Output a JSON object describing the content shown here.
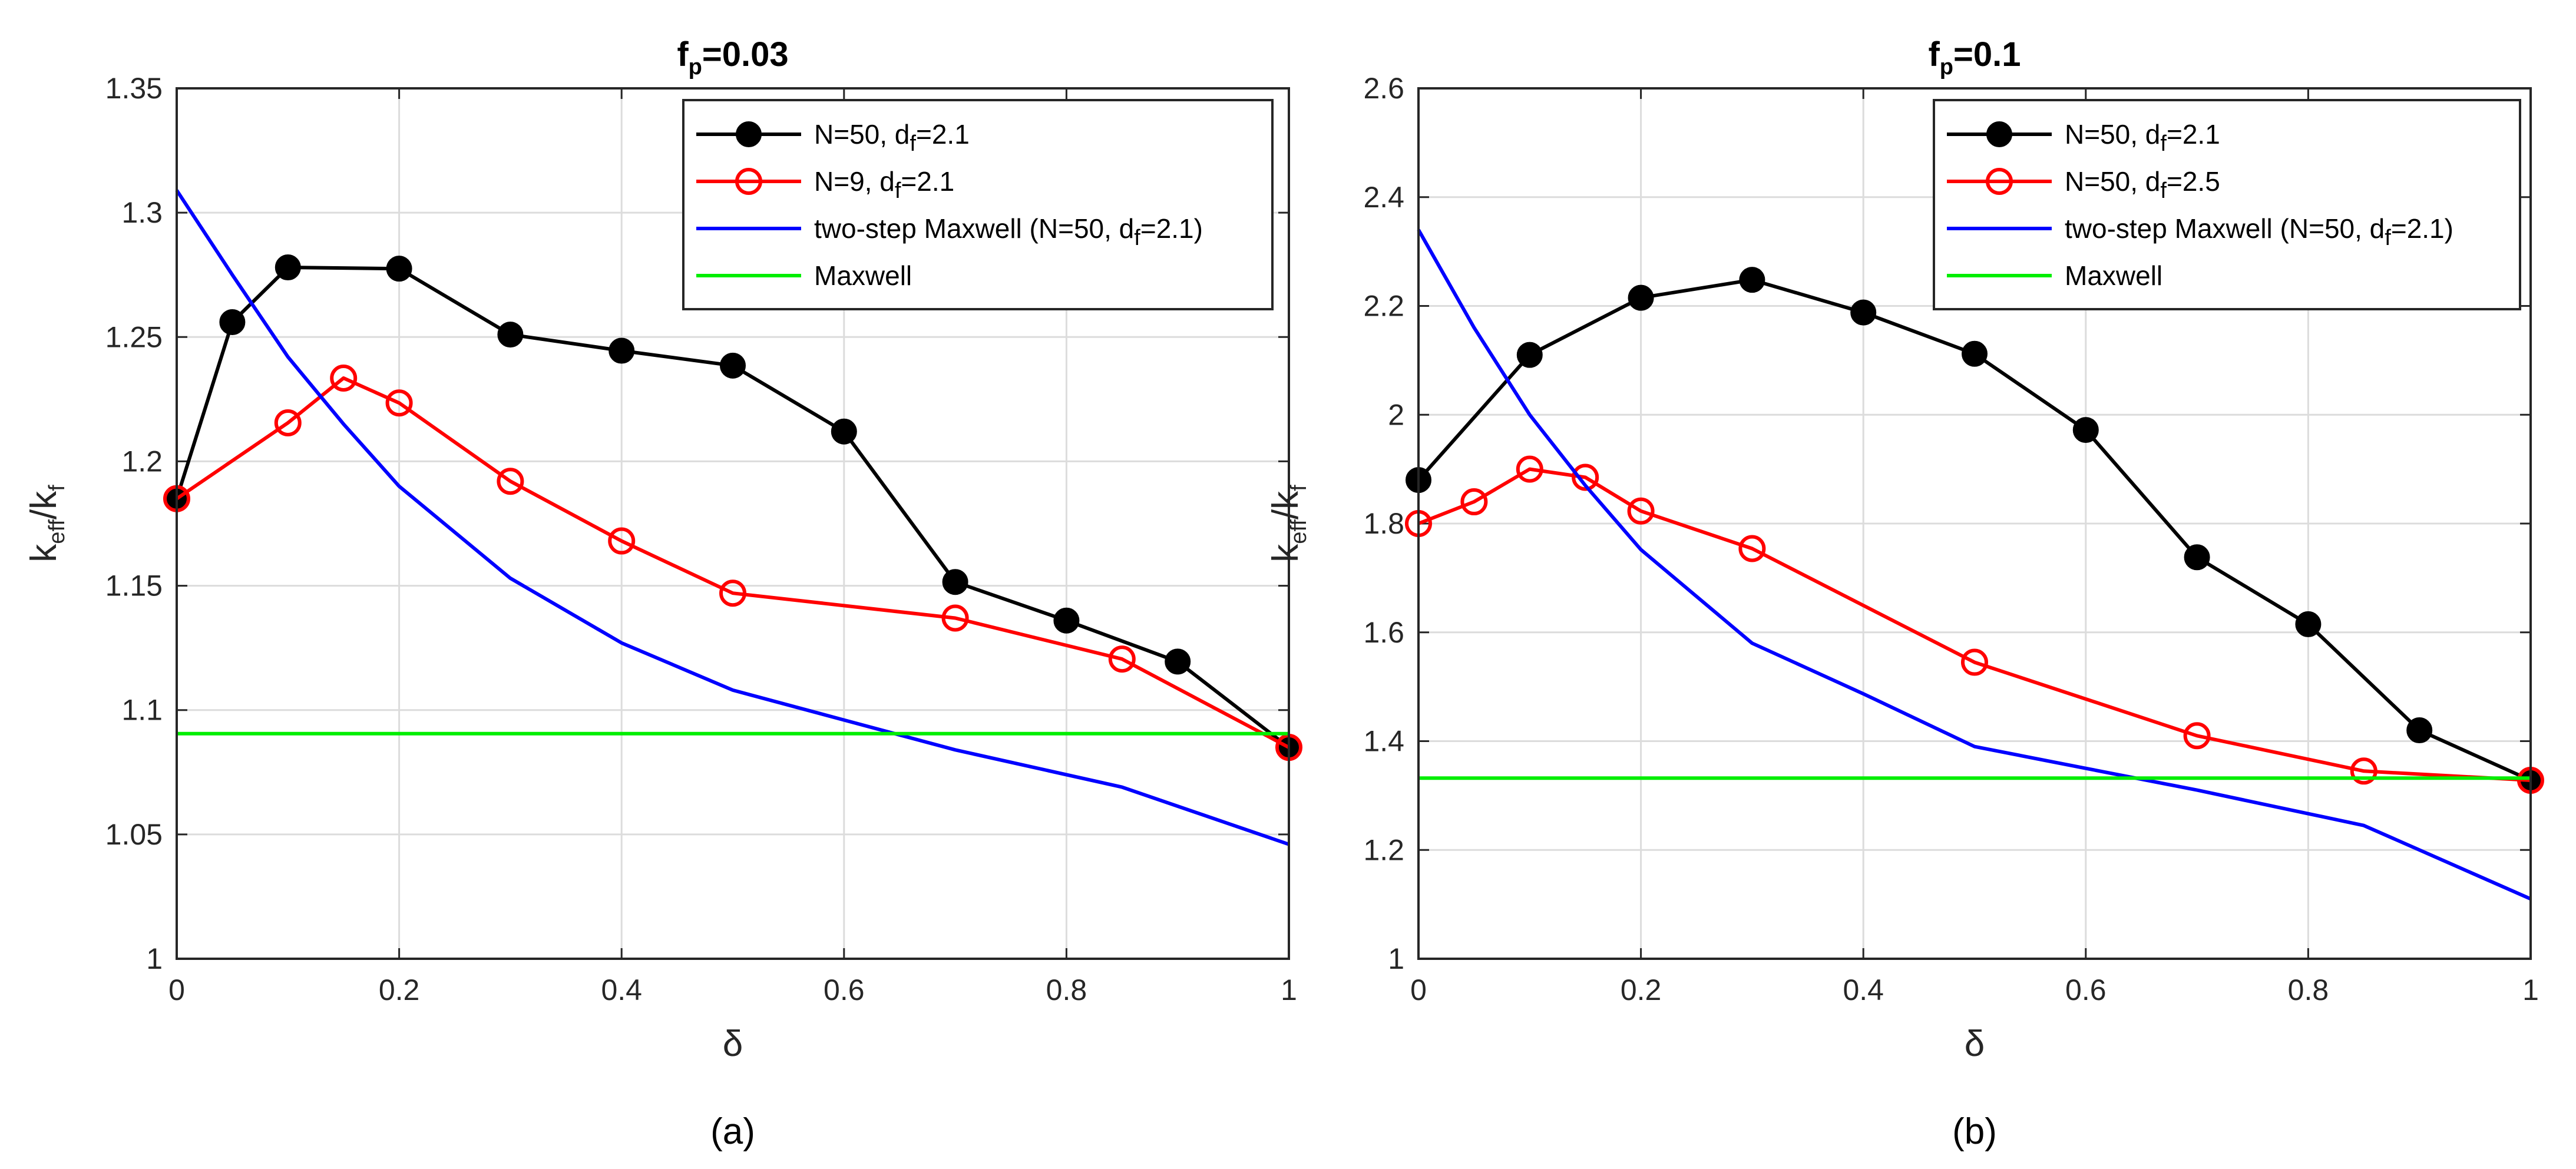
{
  "chart_data": [
    {
      "type": "line",
      "title": {
        "base": "f",
        "sub": "p",
        "rest": "=0.03"
      },
      "caption": "(a)",
      "xlabel": "δ",
      "ylabel": {
        "part1": "k",
        "sub1": "eff",
        "part2": "/k",
        "sub2": "f"
      },
      "xlim": [
        0,
        1
      ],
      "ylim": [
        1,
        1.35
      ],
      "xticks": [
        0,
        0.2,
        0.4,
        0.6,
        0.8,
        1
      ],
      "xtick_labels": [
        "0",
        "0.2",
        "0.4",
        "0.6",
        "0.8",
        "1"
      ],
      "yticks": [
        1,
        1.05,
        1.1,
        1.15,
        1.2,
        1.25,
        1.3,
        1.35
      ],
      "ytick_labels": [
        "1",
        "1.05",
        "1.1",
        "1.15",
        "1.2",
        "1.25",
        "1.3",
        "1.35"
      ],
      "grid": true,
      "legend_position": "top-right",
      "series": [
        {
          "name": "N=50, d_f=2.1",
          "label": {
            "a": "N=50, d",
            "sub": "f",
            "b": "=2.1"
          },
          "color": "#000000",
          "marker": "filled-circle",
          "x": [
            0,
            0.05,
            0.1,
            0.2,
            0.3,
            0.4,
            0.5,
            0.6,
            0.7,
            0.8,
            0.9,
            1
          ],
          "y": [
            1.185,
            1.256,
            1.278,
            1.2775,
            1.251,
            1.2445,
            1.2385,
            1.212,
            1.1515,
            1.136,
            1.1195,
            1.085
          ]
        },
        {
          "name": "N=9, d_f=2.1",
          "label": {
            "a": "N=9, d",
            "sub": "f",
            "b": "=2.1"
          },
          "color": "#ff0000",
          "marker": "open-circle",
          "x": [
            0,
            0.1,
            0.15,
            0.2,
            0.3,
            0.4,
            0.5,
            0.7,
            0.85,
            1
          ],
          "y": [
            1.185,
            1.2155,
            1.2335,
            1.2235,
            1.192,
            1.168,
            1.147,
            1.137,
            1.1205,
            1.085
          ]
        },
        {
          "name": "two-step Maxwell (N=50, d_f=2.1)",
          "label": {
            "a": "two-step Maxwell (N=50, d",
            "sub": "f",
            "b": "=2.1)"
          },
          "color": "#0000ff",
          "marker": "none",
          "x": [
            0,
            0.05,
            0.1,
            0.15,
            0.2,
            0.3,
            0.4,
            0.5,
            0.6,
            0.7,
            0.85,
            1
          ],
          "y": [
            1.309,
            1.275,
            1.242,
            1.215,
            1.19,
            1.153,
            1.127,
            1.108,
            1.096,
            1.084,
            1.069,
            1.046
          ]
        },
        {
          "name": "Maxwell",
          "label": {
            "a": "Maxwell",
            "sub": "",
            "b": ""
          },
          "color": "#00ee00",
          "marker": "none",
          "x": [
            0,
            1
          ],
          "y": [
            1.0905,
            1.0905
          ]
        }
      ]
    },
    {
      "type": "line",
      "title": {
        "base": "f",
        "sub": "p",
        "rest": "=0.1"
      },
      "caption": "(b)",
      "xlabel": "δ",
      "ylabel": {
        "part1": "k",
        "sub1": "eff",
        "part2": "/k",
        "sub2": "f"
      },
      "xlim": [
        0,
        1
      ],
      "ylim": [
        1,
        2.6
      ],
      "xticks": [
        0,
        0.2,
        0.4,
        0.6,
        0.8,
        1
      ],
      "xtick_labels": [
        "0",
        "0.2",
        "0.4",
        "0.6",
        "0.8",
        "1"
      ],
      "yticks": [
        1,
        1.2,
        1.4,
        1.6,
        1.8,
        2,
        2.2,
        2.4,
        2.6
      ],
      "ytick_labels": [
        "1",
        "1.2",
        "1.4",
        "1.6",
        "1.8",
        "2",
        "2.2",
        "2.4",
        "2.6"
      ],
      "grid": true,
      "legend_position": "top-right",
      "series": [
        {
          "name": "N=50, d_f=2.1",
          "label": {
            "a": "N=50, d",
            "sub": "f",
            "b": "=2.1"
          },
          "color": "#000000",
          "marker": "filled-circle",
          "x": [
            0,
            0.1,
            0.2,
            0.3,
            0.4,
            0.5,
            0.6,
            0.7,
            0.8,
            0.9,
            1
          ],
          "y": [
            1.88,
            2.11,
            2.215,
            2.248,
            2.188,
            2.112,
            1.972,
            1.738,
            1.615,
            1.42,
            1.328
          ]
        },
        {
          "name": "N=50, d_f=2.5",
          "label": {
            "a": "N=50, d",
            "sub": "f",
            "b": "=2.5"
          },
          "color": "#ff0000",
          "marker": "open-circle",
          "x": [
            0,
            0.05,
            0.1,
            0.15,
            0.2,
            0.3,
            0.5,
            0.7,
            0.85,
            1
          ],
          "y": [
            1.8,
            1.84,
            1.9,
            1.885,
            1.823,
            1.754,
            1.545,
            1.41,
            1.345,
            1.328
          ]
        },
        {
          "name": "two-step Maxwell (N=50, d_f=2.1)",
          "label": {
            "a": "two-step Maxwell (N=50, d",
            "sub": "f",
            "b": "=2.1)"
          },
          "color": "#0000ff",
          "marker": "none",
          "x": [
            0,
            0.05,
            0.1,
            0.15,
            0.2,
            0.3,
            0.4,
            0.5,
            0.6,
            0.7,
            0.85,
            1
          ],
          "y": [
            2.34,
            2.16,
            2.0,
            1.87,
            1.752,
            1.58,
            1.487,
            1.39,
            1.35,
            1.31,
            1.245,
            1.11
          ]
        },
        {
          "name": "Maxwell",
          "label": {
            "a": "Maxwell",
            "sub": "",
            "b": ""
          },
          "color": "#00ee00",
          "marker": "none",
          "x": [
            0,
            1
          ],
          "y": [
            1.332,
            1.332
          ]
        }
      ]
    }
  ]
}
